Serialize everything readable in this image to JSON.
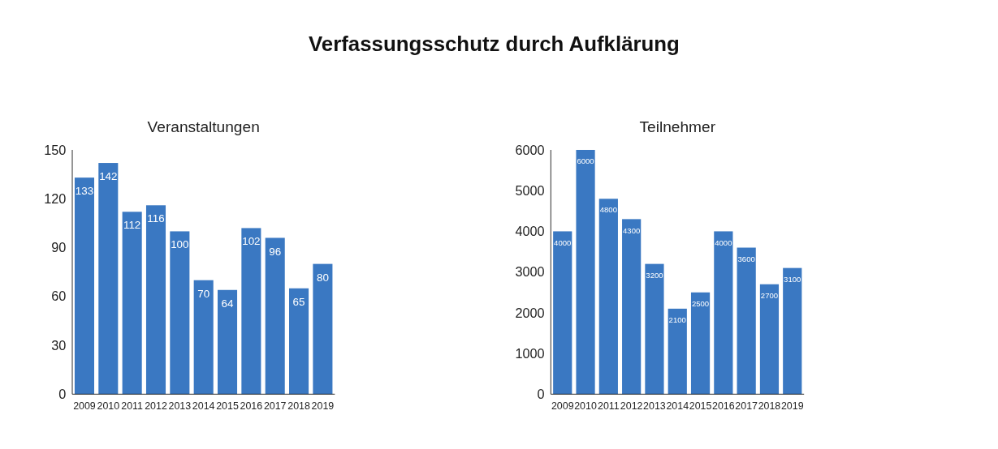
{
  "chart_data": [
    {
      "type": "other",
      "title": "Verfassungsschutz durch Aufklärung"
    },
    {
      "type": "bar",
      "title": "Veranstaltungen",
      "categories": [
        "2009",
        "2010",
        "2011",
        "2012",
        "2013",
        "2014",
        "2015",
        "2016",
        "2017",
        "2018",
        "2019"
      ],
      "values": [
        133,
        142,
        112,
        116,
        100,
        70,
        64,
        102,
        96,
        65,
        80
      ],
      "color": "#3a78c2",
      "ylim": [
        0,
        150
      ],
      "yticks": [
        0,
        30,
        60,
        90,
        120,
        150
      ],
      "data_labels": true
    },
    {
      "type": "bar",
      "title": "Teilnehmer",
      "categories": [
        "2009",
        "2010",
        "2011",
        "2012",
        "2013",
        "2014",
        "2015",
        "2016",
        "2017",
        "2018",
        "2019"
      ],
      "values": [
        4000,
        6000,
        4800,
        4300,
        3200,
        2100,
        2500,
        4000,
        3600,
        2700,
        3100
      ],
      "color": "#3a78c2",
      "ylim": [
        0,
        6000
      ],
      "yticks": [
        0,
        1000,
        2000,
        3000,
        4000,
        5000,
        6000
      ],
      "data_labels": true
    }
  ]
}
